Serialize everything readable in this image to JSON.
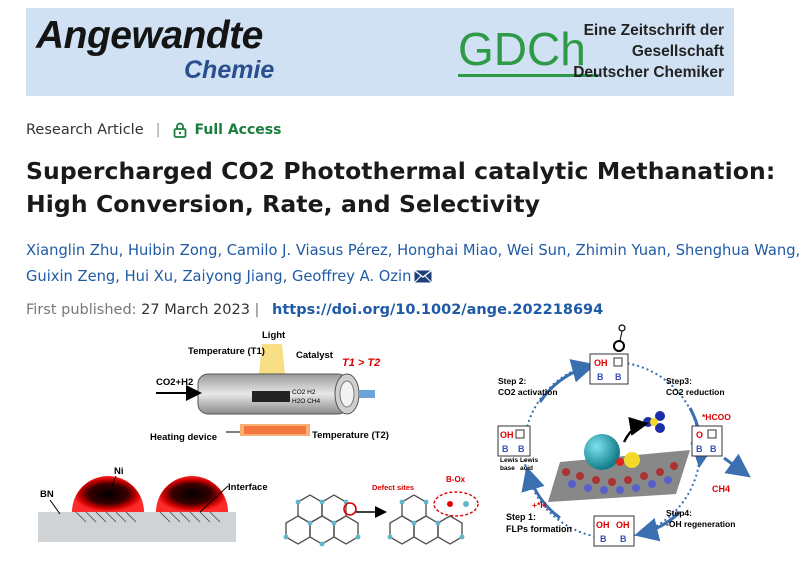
{
  "banner": {
    "logo_main": "Angewandte",
    "logo_sub": "Chemie",
    "society": "GDCh",
    "tagline": [
      "Eine Zeitschrift der",
      "Gesellschaft",
      "Deutscher Chemiker"
    ],
    "bg_color": "#cfe1f2",
    "society_color": "#2e9a48"
  },
  "article": {
    "type": "Research Article",
    "access": "Full Access",
    "access_icon": "lock-icon",
    "title": "Supercharged CO2 Photothermal catalytic Methanation: High Conversion, Rate, and Selectivity",
    "authors": [
      "Xianglin Zhu",
      "Huibin Zong",
      "Camilo J. Viasus Pérez",
      "Honghai Miao",
      "Wei Sun",
      "Zhimin Yuan",
      "Shenghua Wang",
      "Guixin Zeng",
      "Hui Xu",
      "Zaiyong Jiang",
      "Geoffrey A. Ozin"
    ],
    "corresponding_icon": "mail-icon",
    "published_label": "First published:",
    "published_date": "27 March 2023",
    "doi": "https://doi.org/10.1002/ange.202218694",
    "link_color": "#1f5aa6"
  },
  "figure": {
    "reactor": {
      "light": "Light",
      "t1": "Temperature (T1)",
      "catalyst": "Catalyst",
      "condition": "T1 > T2",
      "feed": "CO2+H2",
      "products": [
        "CO2  H2",
        "H2O  CH4"
      ],
      "heater": "Heating device",
      "t2": "Temperature (T2)"
    },
    "interface": {
      "ni": "Ni",
      "bn": "BN",
      "interface": "Interface",
      "defect": "Defect sites",
      "box": "B-Ox"
    },
    "cycle": {
      "step1": "Step 1:",
      "step1b": "FLPs formation",
      "step2": "Step 2:",
      "step2b": "CO2 activation",
      "step3": "Step3:",
      "step3b": "CO2 reduction",
      "step4": "Step4:",
      "step4b": "-OH regeneration",
      "hcoo": "*HCOO",
      "ch4": "CH4",
      "h": "+*H",
      "lewis_base": "Lewis",
      "lewis_base2": "base",
      "lewis_acid": "Lewis",
      "lewis_acid2": "acid",
      "oh": "OH",
      "o": "O",
      "b": "B"
    }
  }
}
